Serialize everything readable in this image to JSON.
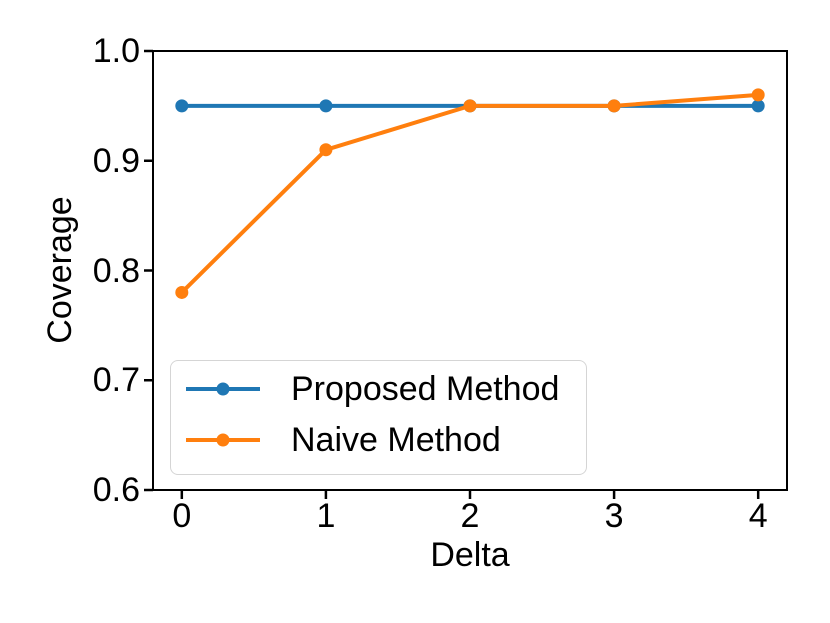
{
  "figure": {
    "background": "#ffffff",
    "axis_color": "#000000"
  },
  "chart_data": {
    "type": "line",
    "title": "",
    "xlabel": "Delta",
    "ylabel": "Coverage",
    "x": [
      0,
      1,
      2,
      3,
      4
    ],
    "series": [
      {
        "name": "Proposed Method",
        "color": "#1f77b4",
        "values": [
          0.95,
          0.95,
          0.95,
          0.95,
          0.95
        ]
      },
      {
        "name": "Naive Method",
        "color": "#ff7f0e",
        "values": [
          0.78,
          0.91,
          0.95,
          0.95,
          0.96
        ]
      }
    ],
    "xlim": [
      -0.2,
      4.2
    ],
    "ylim": [
      0.6,
      1.0
    ],
    "xticks": [
      "0",
      "1",
      "2",
      "3",
      "4"
    ],
    "yticks": [
      "0.6",
      "0.7",
      "0.8",
      "0.9",
      "1.0"
    ],
    "grid": false,
    "legend": {
      "position": "lower left"
    }
  }
}
